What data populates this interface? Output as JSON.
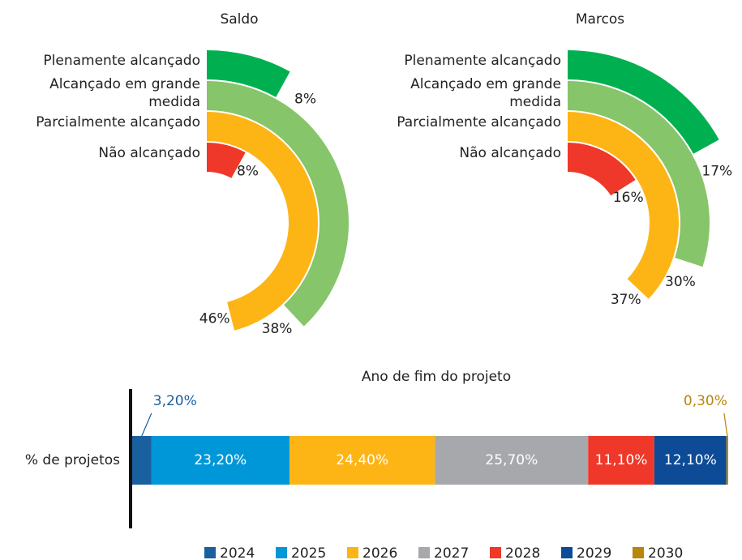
{
  "chart_data": [
    {
      "type": "radial_bar",
      "title": "Saldo",
      "categories": [
        "Plenamente alcançado",
        "Alcançado em grande medida",
        "Parcialmente alcançado",
        "Não alcançado"
      ],
      "values": [
        8,
        38,
        46,
        8
      ],
      "value_labels": [
        "8%",
        "38%",
        "46%",
        "8%"
      ],
      "colors": [
        "#00b050",
        "#86c56a",
        "#fdb515",
        "#ef3829"
      ],
      "ylim": [
        0,
        100
      ]
    },
    {
      "type": "radial_bar",
      "title": "Marcos",
      "categories": [
        "Plenamente alcançado",
        "Alcançado em grande medida",
        "Parcialmente alcançado",
        "Não alcançado"
      ],
      "values": [
        17,
        30,
        37,
        16
      ],
      "value_labels": [
        "17%",
        "30%",
        "37%",
        "16%"
      ],
      "colors": [
        "#00b050",
        "#86c56a",
        "#fdb515",
        "#ef3829"
      ],
      "ylim": [
        0,
        100
      ]
    },
    {
      "type": "stacked_hbar",
      "title": "Ano de fim do projeto",
      "categories": [
        "% de projetos"
      ],
      "xlim": [
        0,
        100
      ],
      "series": [
        {
          "name": "2024",
          "color": "#1a5f9e",
          "values": [
            3.2
          ],
          "value_labels": [
            "3,20%"
          ]
        },
        {
          "name": "2025",
          "color": "#0097d8",
          "values": [
            23.2
          ],
          "value_labels": [
            "23,20%"
          ]
        },
        {
          "name": "2026",
          "color": "#fdb515",
          "values": [
            24.4
          ],
          "value_labels": [
            "24,40%"
          ]
        },
        {
          "name": "2027",
          "color": "#a6a8ab",
          "values": [
            25.7
          ],
          "value_labels": [
            "25,70%"
          ]
        },
        {
          "name": "2028",
          "color": "#ef3829",
          "values": [
            11.1
          ],
          "value_labels": [
            "11,10%"
          ]
        },
        {
          "name": "2029",
          "color": "#0d4b96",
          "values": [
            12.1
          ],
          "value_labels": [
            "12,10%"
          ]
        },
        {
          "name": "2030",
          "color": "#b8860b",
          "values": [
            0.3
          ],
          "value_labels": [
            "0,30%"
          ]
        }
      ]
    }
  ]
}
